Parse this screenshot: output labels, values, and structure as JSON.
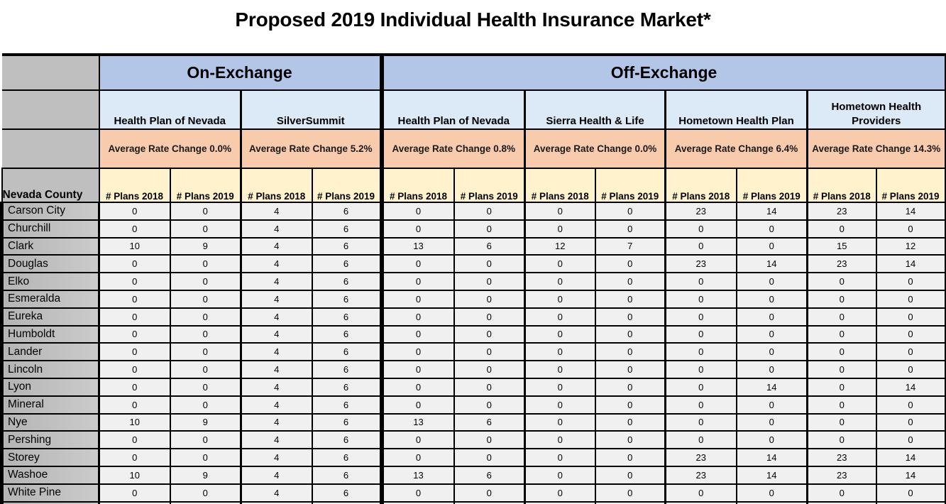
{
  "chart_data": {
    "type": "table",
    "title": "Proposed 2019 Individual Health Insurance Market*",
    "county_header": "Nevada County",
    "year_headers": [
      "# Plans 2018",
      "# Plans 2019"
    ],
    "sections": [
      {
        "label": "On-Exchange",
        "plans": [
          {
            "name": "Health Plan of Nevada",
            "rate_change": "0.0%",
            "rate_change_label": "Average Rate Change 0.0%"
          },
          {
            "name": "SilverSummit",
            "rate_change": "5.2%",
            "rate_change_label": "Average Rate Change 5.2%"
          }
        ]
      },
      {
        "label": "Off-Exchange",
        "plans": [
          {
            "name": "Health Plan of Nevada",
            "rate_change": "0.8%",
            "rate_change_label": "Average Rate Change 0.8%"
          },
          {
            "name": "Sierra Health & Life",
            "rate_change": "0.0%",
            "rate_change_label": "Average Rate Change 0.0%"
          },
          {
            "name": "Hometown Health Plan",
            "rate_change": "6.4%",
            "rate_change_label": "Average Rate Change 6.4%"
          },
          {
            "name": "Hometown Health Providers",
            "rate_change": "14.3%",
            "rate_change_label": "Average Rate Change 14.3%"
          }
        ]
      }
    ],
    "column_order": [
      "On HPN 2018",
      "On HPN 2019",
      "SilverSummit 2018",
      "SilverSummit 2019",
      "Off HPN 2018",
      "Off HPN 2019",
      "Sierra 2018",
      "Sierra 2019",
      "Hometown Health Plan 2018",
      "Hometown Health Plan 2019",
      "Hometown Health Providers 2018",
      "Hometown Health Providers 2019"
    ],
    "rows": [
      {
        "county": "Carson City",
        "values": [
          0,
          0,
          4,
          6,
          0,
          0,
          0,
          0,
          23,
          14,
          23,
          14
        ]
      },
      {
        "county": "Churchill",
        "values": [
          0,
          0,
          4,
          6,
          0,
          0,
          0,
          0,
          0,
          0,
          0,
          0
        ]
      },
      {
        "county": "Clark",
        "values": [
          10,
          9,
          4,
          6,
          13,
          6,
          12,
          7,
          0,
          0,
          15,
          12
        ]
      },
      {
        "county": "Douglas",
        "values": [
          0,
          0,
          4,
          6,
          0,
          0,
          0,
          0,
          23,
          14,
          23,
          14
        ]
      },
      {
        "county": "Elko",
        "values": [
          0,
          0,
          4,
          6,
          0,
          0,
          0,
          0,
          0,
          0,
          0,
          0
        ]
      },
      {
        "county": "Esmeralda",
        "values": [
          0,
          0,
          4,
          6,
          0,
          0,
          0,
          0,
          0,
          0,
          0,
          0
        ]
      },
      {
        "county": "Eureka",
        "values": [
          0,
          0,
          4,
          6,
          0,
          0,
          0,
          0,
          0,
          0,
          0,
          0
        ]
      },
      {
        "county": "Humboldt",
        "values": [
          0,
          0,
          4,
          6,
          0,
          0,
          0,
          0,
          0,
          0,
          0,
          0
        ]
      },
      {
        "county": "Lander",
        "values": [
          0,
          0,
          4,
          6,
          0,
          0,
          0,
          0,
          0,
          0,
          0,
          0
        ]
      },
      {
        "county": "Lincoln",
        "values": [
          0,
          0,
          4,
          6,
          0,
          0,
          0,
          0,
          0,
          0,
          0,
          0
        ]
      },
      {
        "county": "Lyon",
        "values": [
          0,
          0,
          4,
          6,
          0,
          0,
          0,
          0,
          0,
          14,
          0,
          14
        ]
      },
      {
        "county": "Mineral",
        "values": [
          0,
          0,
          4,
          6,
          0,
          0,
          0,
          0,
          0,
          0,
          0,
          0
        ]
      },
      {
        "county": "Nye",
        "values": [
          10,
          9,
          4,
          6,
          13,
          6,
          0,
          0,
          0,
          0,
          0,
          0
        ]
      },
      {
        "county": "Pershing",
        "values": [
          0,
          0,
          4,
          6,
          0,
          0,
          0,
          0,
          0,
          0,
          0,
          0
        ]
      },
      {
        "county": "Storey",
        "values": [
          0,
          0,
          4,
          6,
          0,
          0,
          0,
          0,
          23,
          14,
          23,
          14
        ]
      },
      {
        "county": "Washoe",
        "values": [
          10,
          9,
          4,
          6,
          13,
          6,
          0,
          0,
          23,
          14,
          23,
          14
        ]
      },
      {
        "county": "White Pine",
        "values": [
          0,
          0,
          4,
          6,
          0,
          0,
          0,
          0,
          0,
          0,
          0,
          0
        ]
      }
    ],
    "partial_bottom_row": true
  },
  "colors": {
    "section_header_bg": "#b4c6e7",
    "plan_header_bg": "#dce9f6",
    "rate_row_bg": "#f8cbad",
    "year_header_bg": "#fff2cc",
    "county_col_bg": "#bfbfbf",
    "data_cell_bg": "#f0f0f0",
    "border": "#000000",
    "text": "#000000"
  }
}
